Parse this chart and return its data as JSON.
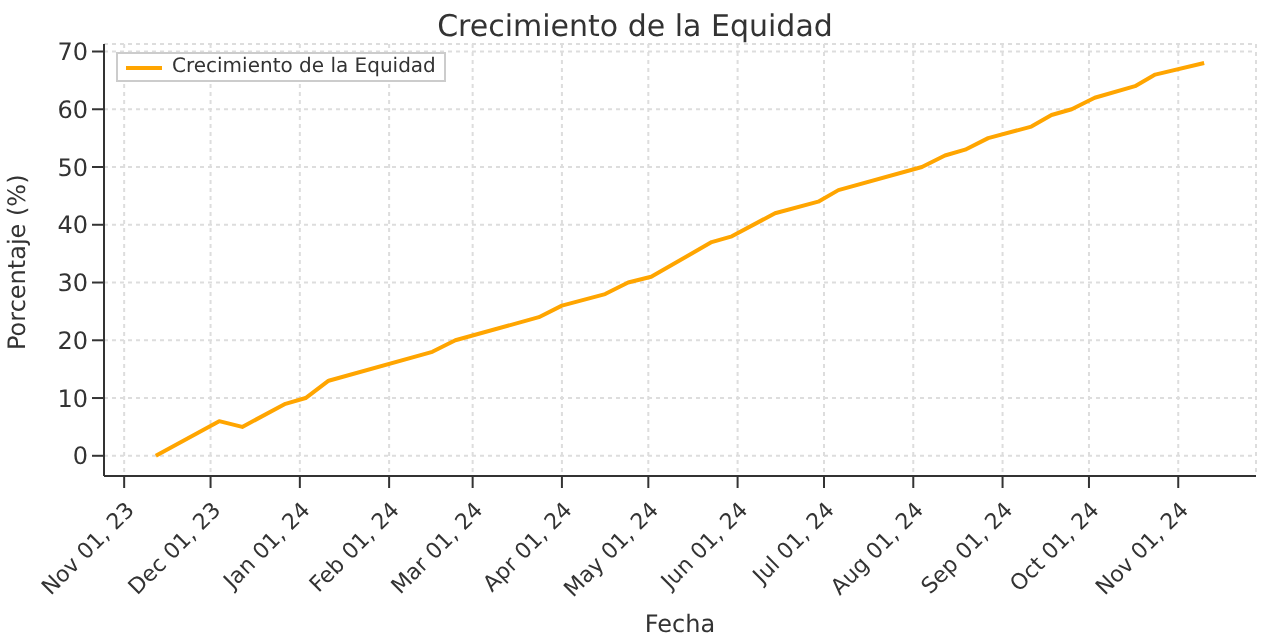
{
  "chart_data": {
    "type": "line",
    "title": "Crecimiento de la Equidad",
    "xlabel": "Fecha",
    "ylabel": "Porcentaje (%)",
    "x": [
      "2023-11-12",
      "2023-12-04",
      "2023-12-12",
      "2023-12-27",
      "2024-01-03",
      "2024-01-11",
      "2024-02-16",
      "2024-02-24",
      "2024-03-24",
      "2024-04-01",
      "2024-04-16",
      "2024-04-24",
      "2024-05-02",
      "2024-05-23",
      "2024-05-30",
      "2024-06-14",
      "2024-06-29",
      "2024-07-06",
      "2024-08-04",
      "2024-08-12",
      "2024-08-19",
      "2024-08-27",
      "2024-09-11",
      "2024-09-18",
      "2024-09-25",
      "2024-10-03",
      "2024-10-17",
      "2024-10-24",
      "2024-11-10"
    ],
    "series": [
      {
        "name": "Crecimiento de la Equidad",
        "color": "#ffa500",
        "values": [
          0,
          6,
          5,
          9,
          10,
          13,
          18,
          20,
          24,
          26,
          28,
          30,
          31,
          37,
          38,
          42,
          44,
          46,
          50,
          52,
          53,
          55,
          57,
          59,
          60,
          62,
          64,
          66,
          68
        ]
      }
    ],
    "xlim": [
      "2023-10-25",
      "2024-11-28"
    ],
    "xticks": [
      {
        "value": "2023-11-01",
        "label": "Nov 01, 23"
      },
      {
        "value": "2023-12-01",
        "label": "Dec 01, 23"
      },
      {
        "value": "2024-01-01",
        "label": "Jan 01, 24"
      },
      {
        "value": "2024-02-01",
        "label": "Feb 01, 24"
      },
      {
        "value": "2024-03-01",
        "label": "Mar 01, 24"
      },
      {
        "value": "2024-04-01",
        "label": "Apr 01, 24"
      },
      {
        "value": "2024-05-01",
        "label": "May 01, 24"
      },
      {
        "value": "2024-06-01",
        "label": "Jun 01, 24"
      },
      {
        "value": "2024-07-01",
        "label": "Jul 01, 24"
      },
      {
        "value": "2024-08-01",
        "label": "Aug 01, 24"
      },
      {
        "value": "2024-09-01",
        "label": "Sep 01, 24"
      },
      {
        "value": "2024-10-01",
        "label": "Oct 01, 24"
      },
      {
        "value": "2024-11-01",
        "label": "Nov 01, 24"
      }
    ],
    "ylim": [
      -3.5,
      71.3
    ],
    "yticks": [
      0,
      10,
      20,
      30,
      40,
      50,
      60,
      70
    ],
    "grid": true,
    "legend": "top left",
    "marker": "none",
    "line_style": "solid"
  }
}
